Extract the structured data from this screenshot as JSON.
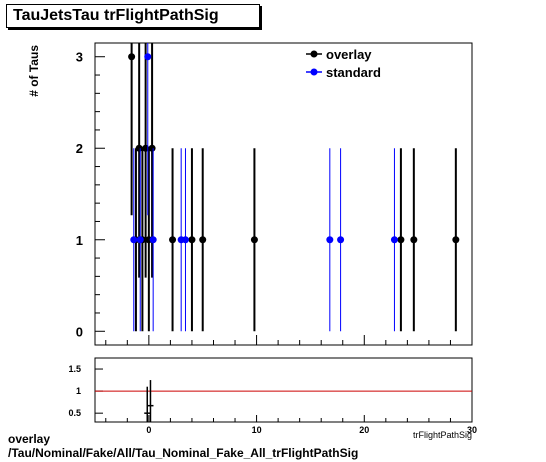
{
  "title": "TauJetsTau trFlightPathSig",
  "footer": {
    "line1": "overlay",
    "line2": "/Tau/Nominal/Fake/All/Tau_Nominal_Fake_All_trFlightPathSig"
  },
  "chart_data": [
    {
      "type": "scatter",
      "ylabel": "# of Taus",
      "xlim": [
        -5,
        30
      ],
      "ylim": [
        -0.15,
        3.15
      ],
      "yticks": [
        0,
        1,
        2,
        3
      ],
      "legend_position": "top-right",
      "series": [
        {
          "name": "overlay",
          "color": "#000000",
          "x": [
            -1.6,
            -1.2,
            -0.9,
            -0.6,
            -0.3,
            0.0,
            0.3,
            2.2,
            4.0,
            5.0,
            9.8,
            23.4,
            24.6,
            28.5
          ],
          "y": [
            3,
            1,
            2,
            1,
            2,
            1,
            2,
            1,
            1,
            1,
            1,
            1,
            1,
            1
          ]
        },
        {
          "name": "standard",
          "color": "#0000ff",
          "x": [
            -1.4,
            -0.8,
            -0.1,
            0.4,
            3.0,
            3.4,
            16.8,
            17.8,
            22.8
          ],
          "y": [
            1,
            1,
            3,
            1,
            1,
            1,
            1,
            1,
            1
          ]
        }
      ]
    },
    {
      "type": "scatter",
      "xlabel": "trFlightPathSig",
      "xlim": [
        -5,
        30
      ],
      "ylim": [
        0.3,
        1.75
      ],
      "yticks": [
        0.5,
        1,
        1.5
      ],
      "xticks": [
        0,
        10,
        20,
        30
      ],
      "reference_line": 1,
      "reference_color": "#cc0000",
      "points": [
        {
          "x": -0.15,
          "y": 0.5,
          "ylow": 0.0,
          "yhigh": 1.1
        },
        {
          "x": 0.15,
          "y": 0.67,
          "ylow": 0.1,
          "yhigh": 1.25
        }
      ]
    }
  ]
}
